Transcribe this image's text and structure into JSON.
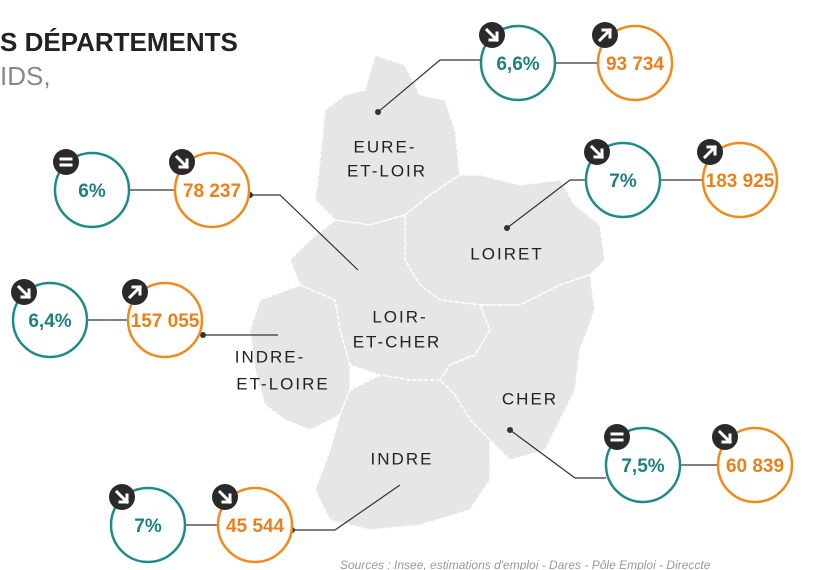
{
  "header": {
    "title": "S DÉPARTEMENTS",
    "subtitle": "IDS,"
  },
  "departments": [
    {
      "name": [
        "EURE-",
        "ET-LOIR"
      ],
      "rate": "6,6%",
      "jobs": "93 734"
    },
    {
      "name": [
        "LOIRET"
      ],
      "rate": "7%",
      "jobs": "183 925"
    },
    {
      "name": [
        "LOIR-",
        "ET-CHER"
      ],
      "rate": "6%",
      "jobs": "78 237"
    },
    {
      "name": [
        "INDRE-",
        "ET-LOIRE"
      ],
      "rate": "6,4%",
      "jobs": "157 055"
    },
    {
      "name": [
        "CHER"
      ],
      "rate": "7,5%",
      "jobs": "60 839"
    },
    {
      "name": [
        "INDRE"
      ],
      "rate": "7%",
      "jobs": "45 544"
    }
  ],
  "source": "Sources : Insee, estimations d'emploi - Dares - Pôle Emploi - Direccte"
}
